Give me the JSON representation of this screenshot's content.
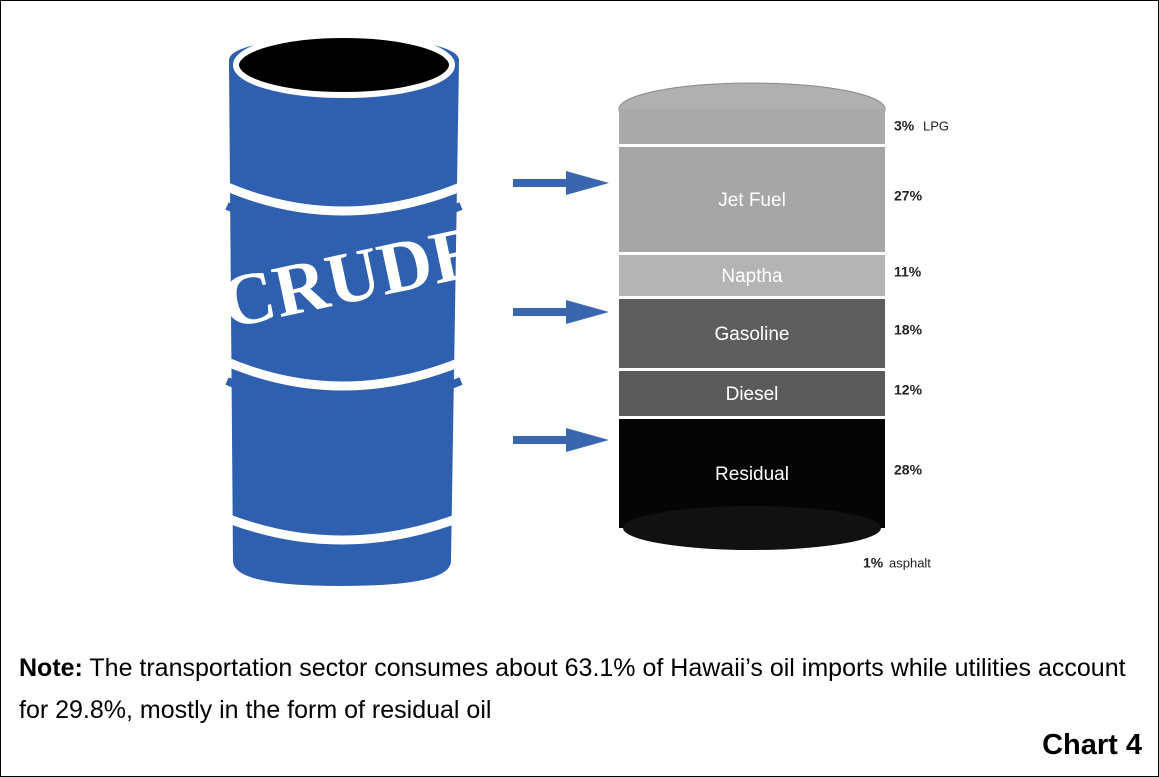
{
  "chart_data": {
    "type": "barrel",
    "barrel_label": "CRUDE",
    "categories": [
      "LPG",
      "Jet Fuel",
      "Naptha",
      "Gasoline",
      "Diesel",
      "Residual",
      "asphalt"
    ],
    "values": [
      3,
      27,
      11,
      18,
      12,
      28,
      1
    ],
    "value_labels": [
      "3%",
      "27%",
      "11%",
      "18%",
      "12%",
      "28%",
      "1%"
    ],
    "colors": [
      "#a9a9a9",
      "#a6a6a6",
      "#b4b4b4",
      "#5e5e5e",
      "#5a5a5a",
      "#050505",
      "#111111"
    ]
  },
  "note": {
    "label": "Note:",
    "text": "The transportation sector consumes about 63.1% of Hawaii’s oil imports while utilities account for 29.8%, mostly in the form of residual oil"
  },
  "caption": "Chart 4"
}
